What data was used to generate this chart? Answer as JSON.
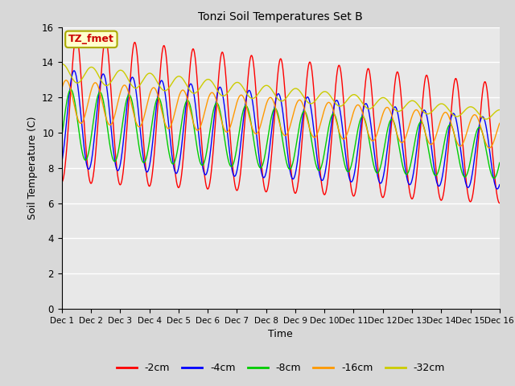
{
  "title": "Tonzi Soil Temperatures Set B",
  "xlabel": "Time",
  "ylabel": "Soil Temperature (C)",
  "annotation_text": "TZ_fmet",
  "annotation_bg": "#ffffcc",
  "annotation_border": "#aaaa00",
  "annotation_text_color": "#cc0000",
  "series_colors": [
    "#ff0000",
    "#0000ff",
    "#00cc00",
    "#ff9900",
    "#cccc00"
  ],
  "series_labels": [
    "-2cm",
    "-4cm",
    "-8cm",
    "-16cm",
    "-32cm"
  ],
  "ylim": [
    0,
    16
  ],
  "yticks": [
    0,
    2,
    4,
    6,
    8,
    10,
    12,
    14,
    16
  ],
  "n_points": 3000,
  "bg_color": "#e8e8e8",
  "grid_color": "#ffffff",
  "xtick_labels": [
    "Dec 1",
    "Dec 2",
    "Dec 3",
    "Dec 4",
    "Dec 5",
    "Dec 6",
    "Dec 7",
    "Dec 8",
    "Dec 9",
    "Dec 10",
    "Dec 11",
    "Dec 12",
    "Dec 13",
    "Dec 14",
    "Dec 15",
    "Dec 16"
  ],
  "xtick_positions": [
    0,
    1,
    2,
    3,
    4,
    5,
    6,
    7,
    8,
    9,
    10,
    11,
    12,
    13,
    14,
    15
  ]
}
